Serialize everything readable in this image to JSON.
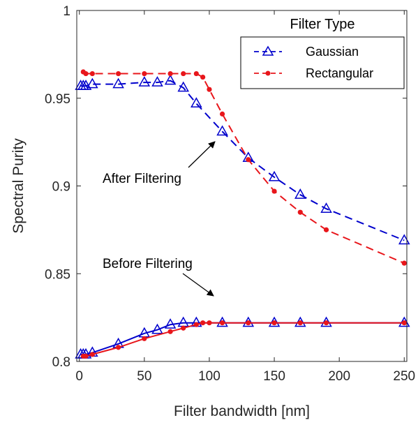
{
  "chart_data": {
    "type": "line",
    "xlabel": "Filter bandwidth [nm]",
    "ylabel": "Spectral Purity",
    "xlim": [
      -2,
      252
    ],
    "ylim": [
      0.8,
      1.0
    ],
    "xticks": [
      0,
      50,
      100,
      150,
      200,
      250
    ],
    "xtick_labels": [
      "0",
      "50",
      "100",
      "150",
      "200",
      "250"
    ],
    "yticks": [
      0.8,
      0.85,
      0.9,
      0.95,
      1.0
    ],
    "ytick_labels": [
      "0.8",
      "0.85",
      "0.9",
      "0.95",
      "1"
    ],
    "grid": false,
    "legend": {
      "title": "Filter Type",
      "position": "top-right",
      "entries": [
        {
          "label": "Gaussian",
          "color": "#0000cc",
          "marker": "triangle"
        },
        {
          "label": "Rectangular",
          "color": "#e8161b",
          "marker": "dot"
        }
      ]
    },
    "annotations": [
      {
        "text": "After Filtering"
      },
      {
        "text": "Before Filtering"
      }
    ],
    "series": [
      {
        "name": "Gaussian",
        "group": "after",
        "color": "#0000cc",
        "marker": "triangle",
        "line": "dashed",
        "x": [
          1,
          3,
          5,
          10,
          30,
          50,
          60,
          70,
          80,
          90,
          110,
          130,
          150,
          170,
          190,
          250
        ],
        "y": [
          0.957,
          0.957,
          0.957,
          0.958,
          0.958,
          0.959,
          0.959,
          0.96,
          0.956,
          0.947,
          0.931,
          0.916,
          0.905,
          0.895,
          0.887,
          0.869
        ]
      },
      {
        "name": "Rectangular",
        "group": "after",
        "color": "#e8161b",
        "marker": "dot",
        "line": "dashed",
        "x": [
          3,
          5,
          10,
          30,
          50,
          70,
          80,
          90,
          95,
          100,
          110,
          130,
          150,
          170,
          190,
          250
        ],
        "y": [
          0.965,
          0.964,
          0.964,
          0.964,
          0.964,
          0.964,
          0.964,
          0.964,
          0.962,
          0.955,
          0.941,
          0.915,
          0.897,
          0.885,
          0.875,
          0.856
        ]
      },
      {
        "name": "Gaussian",
        "group": "before",
        "color": "#0000cc",
        "marker": "triangle",
        "line": "solid",
        "x": [
          1,
          3,
          5,
          10,
          30,
          50,
          60,
          70,
          80,
          90,
          110,
          130,
          150,
          170,
          190,
          250
        ],
        "y": [
          0.804,
          0.804,
          0.804,
          0.805,
          0.81,
          0.816,
          0.818,
          0.821,
          0.822,
          0.822,
          0.822,
          0.822,
          0.822,
          0.822,
          0.822,
          0.822
        ]
      },
      {
        "name": "Rectangular",
        "group": "before",
        "color": "#e8161b",
        "marker": "dot",
        "line": "solid",
        "x": [
          3,
          5,
          10,
          30,
          50,
          70,
          80,
          90,
          95,
          100,
          110,
          130,
          150,
          170,
          190,
          250
        ],
        "y": [
          0.803,
          0.803,
          0.804,
          0.808,
          0.813,
          0.817,
          0.819,
          0.821,
          0.822,
          0.822,
          0.822,
          0.822,
          0.822,
          0.822,
          0.822,
          0.822
        ]
      }
    ]
  }
}
